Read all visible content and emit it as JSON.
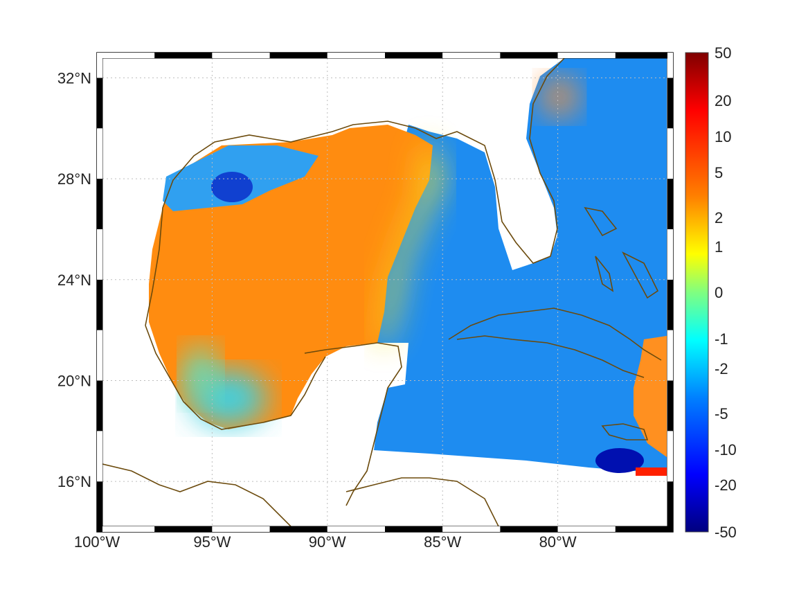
{
  "map": {
    "lon_range": [
      -100,
      -75
    ],
    "lat_range": [
      14,
      33
    ],
    "x_ticks": [
      {
        "value": -100,
        "label": "100°W"
      },
      {
        "value": -95,
        "label": "95°W"
      },
      {
        "value": -90,
        "label": "90°W"
      },
      {
        "value": -85,
        "label": "85°W"
      },
      {
        "value": -80,
        "label": "80°W"
      }
    ],
    "y_ticks": [
      {
        "value": 32,
        "label": "32°N"
      },
      {
        "value": 28,
        "label": "28°N"
      },
      {
        "value": 24,
        "label": "24°N"
      },
      {
        "value": 20,
        "label": "20°N"
      },
      {
        "value": 16,
        "label": "16°N"
      }
    ],
    "grid": "dotted",
    "coastline_color": "#6b4a0c",
    "land_color": "#ffffff"
  },
  "colorbar": {
    "labels": [
      "50",
      "20",
      "10",
      "5",
      "2",
      "1",
      "0",
      "-1",
      "-2",
      "-5",
      "-10",
      "-20",
      "-50"
    ],
    "colormap": [
      "#7f0000",
      "#ff0000",
      "#ff8000",
      "#ffff00",
      "#80ff80",
      "#00ffff",
      "#0080ff",
      "#0000ff",
      "#00007f"
    ]
  }
}
